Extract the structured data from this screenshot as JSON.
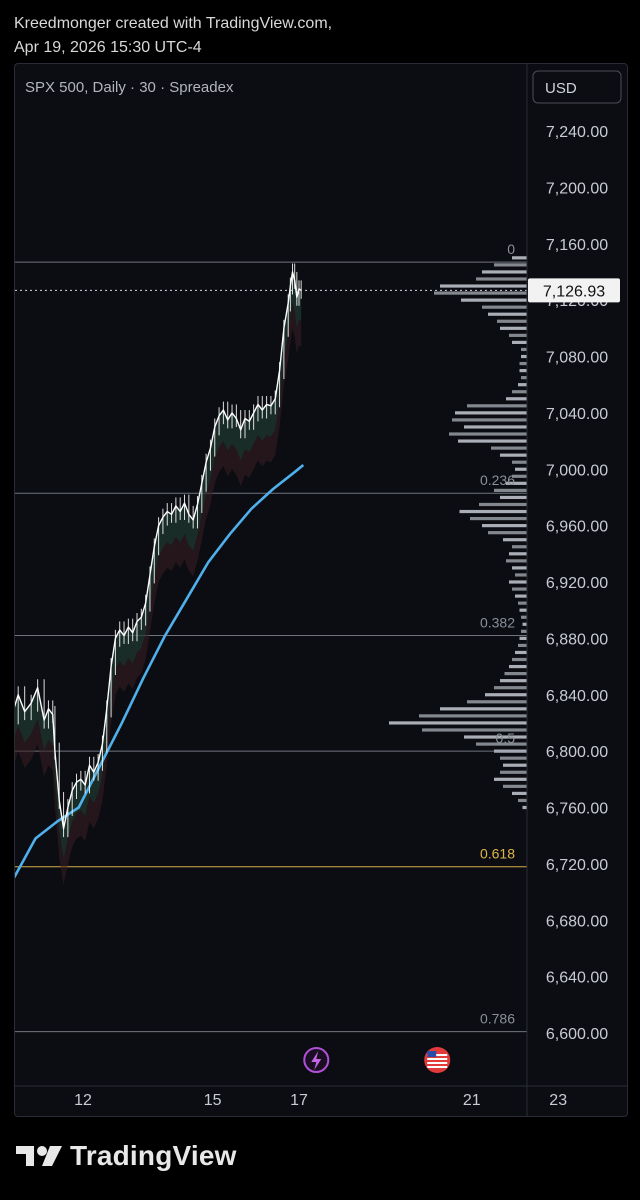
{
  "header": {
    "line1": "Kreedmonger created with TradingView.com,",
    "line2": "Apr 19, 2026 15:30 UTC-4"
  },
  "footer": {
    "brand": "TradingView"
  },
  "colors": {
    "background": "#0b0d12",
    "fib_line": "#9aa0ab",
    "fib_618": "#e0b44c",
    "ma_blue": "#4fb0ec",
    "candle": "#ffffff",
    "vol_profile": "#b8bcc4",
    "cloud_green": "#1f3a30",
    "cloud_red": "#3a1f22"
  },
  "chart_data": {
    "type": "line",
    "title": "SPX 500, Daily · 30 · Spreadex",
    "currency": "USD",
    "last_price": "7,126.93",
    "ylim": [
      6585,
      7265
    ],
    "y_ticks": [
      {
        "value": 7240,
        "label": "7,240.00"
      },
      {
        "value": 7200,
        "label": "7,200.00"
      },
      {
        "value": 7160,
        "label": "7,160.00"
      },
      {
        "value": 7120,
        "label": "7,120.00"
      },
      {
        "value": 7080,
        "label": "7,080.00"
      },
      {
        "value": 7040,
        "label": "7,040.00"
      },
      {
        "value": 7000,
        "label": "7,000.00"
      },
      {
        "value": 6960,
        "label": "6,960.00"
      },
      {
        "value": 6920,
        "label": "6,920.00"
      },
      {
        "value": 6880,
        "label": "6,880.00"
      },
      {
        "value": 6840,
        "label": "6,840.00"
      },
      {
        "value": 6800,
        "label": "6,800.00"
      },
      {
        "value": 6760,
        "label": "6,760.00"
      },
      {
        "value": 6720,
        "label": "6,720.00"
      },
      {
        "value": 6680,
        "label": "6,680.00"
      },
      {
        "value": 6640,
        "label": "6,640.00"
      },
      {
        "value": 6600,
        "label": "6,600.00"
      }
    ],
    "x_ticks": [
      {
        "day": 12,
        "label": "12"
      },
      {
        "day": 15,
        "label": "15"
      },
      {
        "day": 17,
        "label": "17"
      },
      {
        "day": 21,
        "label": "21"
      },
      {
        "day": 23,
        "label": "23"
      }
    ],
    "fib_levels": [
      {
        "label": "0",
        "value": 7147
      },
      {
        "label": "0.236",
        "value": 6983
      },
      {
        "label": "0.382",
        "value": 6882
      },
      {
        "label": "0.5",
        "value": 6800
      },
      {
        "label": "0.618",
        "value": 6718
      },
      {
        "label": "0.786",
        "value": 6601
      }
    ],
    "price_series": [
      [
        10.0,
        6790
      ],
      [
        10.1,
        6810
      ],
      [
        10.2,
        6830
      ],
      [
        10.35,
        6825
      ],
      [
        10.5,
        6840
      ],
      [
        10.65,
        6828
      ],
      [
        10.8,
        6834
      ],
      [
        10.95,
        6845
      ],
      [
        11.1,
        6822
      ],
      [
        11.2,
        6830
      ],
      [
        11.3,
        6826
      ],
      [
        11.35,
        6800
      ],
      [
        11.45,
        6765
      ],
      [
        11.55,
        6745
      ],
      [
        11.65,
        6760
      ],
      [
        11.75,
        6772
      ],
      [
        11.85,
        6778
      ],
      [
        11.95,
        6780
      ],
      [
        12.05,
        6776
      ],
      [
        12.15,
        6790
      ],
      [
        12.25,
        6785
      ],
      [
        12.35,
        6792
      ],
      [
        12.45,
        6805
      ],
      [
        12.55,
        6830
      ],
      [
        12.65,
        6860
      ],
      [
        12.75,
        6880
      ],
      [
        12.85,
        6886
      ],
      [
        12.95,
        6882
      ],
      [
        13.05,
        6888
      ],
      [
        13.15,
        6884
      ],
      [
        13.25,
        6892
      ],
      [
        13.35,
        6895
      ],
      [
        13.45,
        6905
      ],
      [
        13.55,
        6925
      ],
      [
        13.65,
        6945
      ],
      [
        13.75,
        6960
      ],
      [
        13.85,
        6966
      ],
      [
        13.95,
        6970
      ],
      [
        14.05,
        6968
      ],
      [
        14.15,
        6974
      ],
      [
        14.25,
        6970
      ],
      [
        14.35,
        6976
      ],
      [
        14.45,
        6968
      ],
      [
        14.55,
        6964
      ],
      [
        14.65,
        6975
      ],
      [
        14.75,
        6990
      ],
      [
        14.85,
        7005
      ],
      [
        14.95,
        7015
      ],
      [
        15.05,
        7030
      ],
      [
        15.15,
        7038
      ],
      [
        15.25,
        7042
      ],
      [
        15.35,
        7035
      ],
      [
        15.45,
        7040
      ],
      [
        15.55,
        7036
      ],
      [
        15.65,
        7028
      ],
      [
        15.75,
        7036
      ],
      [
        15.85,
        7034
      ],
      [
        15.95,
        7040
      ],
      [
        16.05,
        7046
      ],
      [
        16.15,
        7042
      ],
      [
        16.25,
        7046
      ],
      [
        16.35,
        7045
      ],
      [
        16.45,
        7050
      ],
      [
        16.55,
        7070
      ],
      [
        16.65,
        7100
      ],
      [
        16.75,
        7118
      ],
      [
        16.8,
        7130
      ],
      [
        16.85,
        7140
      ],
      [
        16.9,
        7134
      ],
      [
        16.95,
        7122
      ],
      [
        17.0,
        7128
      ],
      [
        17.05,
        7126.93
      ]
    ],
    "ma_series": [
      [
        9.9,
        6675
      ],
      [
        10.4,
        6710
      ],
      [
        10.9,
        6738
      ],
      [
        11.4,
        6750
      ],
      [
        11.9,
        6760
      ],
      [
        12.4,
        6790
      ],
      [
        12.9,
        6820
      ],
      [
        13.4,
        6852
      ],
      [
        13.9,
        6882
      ],
      [
        14.4,
        6908
      ],
      [
        14.9,
        6934
      ],
      [
        15.4,
        6954
      ],
      [
        15.9,
        6972
      ],
      [
        16.4,
        6986
      ],
      [
        16.9,
        6998
      ],
      [
        17.1,
        7003
      ]
    ],
    "volume_profile": [
      {
        "price": 7150,
        "size": 0.1
      },
      {
        "price": 7145,
        "size": 0.22
      },
      {
        "price": 7140,
        "size": 0.3
      },
      {
        "price": 7135,
        "size": 0.34
      },
      {
        "price": 7130,
        "size": 0.58
      },
      {
        "price": 7125,
        "size": 0.62
      },
      {
        "price": 7120,
        "size": 0.44
      },
      {
        "price": 7115,
        "size": 0.3
      },
      {
        "price": 7110,
        "size": 0.26
      },
      {
        "price": 7105,
        "size": 0.2
      },
      {
        "price": 7100,
        "size": 0.18
      },
      {
        "price": 7095,
        "size": 0.12
      },
      {
        "price": 7090,
        "size": 0.1
      },
      {
        "price": 7085,
        "size": 0.04
      },
      {
        "price": 7080,
        "size": 0.04
      },
      {
        "price": 7075,
        "size": 0.05
      },
      {
        "price": 7070,
        "size": 0.05
      },
      {
        "price": 7065,
        "size": 0.04
      },
      {
        "price": 7060,
        "size": 0.06
      },
      {
        "price": 7055,
        "size": 0.1
      },
      {
        "price": 7050,
        "size": 0.14
      },
      {
        "price": 7045,
        "size": 0.4
      },
      {
        "price": 7040,
        "size": 0.48
      },
      {
        "price": 7035,
        "size": 0.5
      },
      {
        "price": 7030,
        "size": 0.42
      },
      {
        "price": 7025,
        "size": 0.52
      },
      {
        "price": 7020,
        "size": 0.46
      },
      {
        "price": 7015,
        "size": 0.24
      },
      {
        "price": 7010,
        "size": 0.18
      },
      {
        "price": 7005,
        "size": 0.1
      },
      {
        "price": 7000,
        "size": 0.08
      },
      {
        "price": 6995,
        "size": 0.1
      },
      {
        "price": 6990,
        "size": 0.14
      },
      {
        "price": 6985,
        "size": 0.22
      },
      {
        "price": 6980,
        "size": 0.18
      },
      {
        "price": 6975,
        "size": 0.32
      },
      {
        "price": 6970,
        "size": 0.45
      },
      {
        "price": 6965,
        "size": 0.38
      },
      {
        "price": 6960,
        "size": 0.3
      },
      {
        "price": 6955,
        "size": 0.26
      },
      {
        "price": 6950,
        "size": 0.16
      },
      {
        "price": 6945,
        "size": 0.1
      },
      {
        "price": 6940,
        "size": 0.12
      },
      {
        "price": 6935,
        "size": 0.14
      },
      {
        "price": 6930,
        "size": 0.1
      },
      {
        "price": 6925,
        "size": 0.08
      },
      {
        "price": 6920,
        "size": 0.12
      },
      {
        "price": 6915,
        "size": 0.1
      },
      {
        "price": 6910,
        "size": 0.08
      },
      {
        "price": 6905,
        "size": 0.06
      },
      {
        "price": 6900,
        "size": 0.05
      },
      {
        "price": 6895,
        "size": 0.04
      },
      {
        "price": 6890,
        "size": 0.03
      },
      {
        "price": 6885,
        "size": 0.04
      },
      {
        "price": 6880,
        "size": 0.05
      },
      {
        "price": 6875,
        "size": 0.06
      },
      {
        "price": 6870,
        "size": 0.08
      },
      {
        "price": 6865,
        "size": 0.1
      },
      {
        "price": 6860,
        "size": 0.12
      },
      {
        "price": 6855,
        "size": 0.15
      },
      {
        "price": 6850,
        "size": 0.18
      },
      {
        "price": 6845,
        "size": 0.22
      },
      {
        "price": 6840,
        "size": 0.28
      },
      {
        "price": 6835,
        "size": 0.4
      },
      {
        "price": 6830,
        "size": 0.58
      },
      {
        "price": 6825,
        "size": 0.72
      },
      {
        "price": 6820,
        "size": 0.92
      },
      {
        "price": 6815,
        "size": 0.7
      },
      {
        "price": 6810,
        "size": 0.42
      },
      {
        "price": 6805,
        "size": 0.34
      },
      {
        "price": 6800,
        "size": 0.22
      },
      {
        "price": 6795,
        "size": 0.18
      },
      {
        "price": 6790,
        "size": 0.16
      },
      {
        "price": 6785,
        "size": 0.18
      },
      {
        "price": 6780,
        "size": 0.22
      },
      {
        "price": 6775,
        "size": 0.16
      },
      {
        "price": 6770,
        "size": 0.1
      },
      {
        "price": 6765,
        "size": 0.06
      },
      {
        "price": 6760,
        "size": 0.03
      }
    ],
    "events": [
      {
        "day": 17.4,
        "icon": "lightning-icon"
      },
      {
        "day": 20.2,
        "icon": "us-flag-icon"
      }
    ],
    "xlabel": "",
    "ylabel": ""
  }
}
